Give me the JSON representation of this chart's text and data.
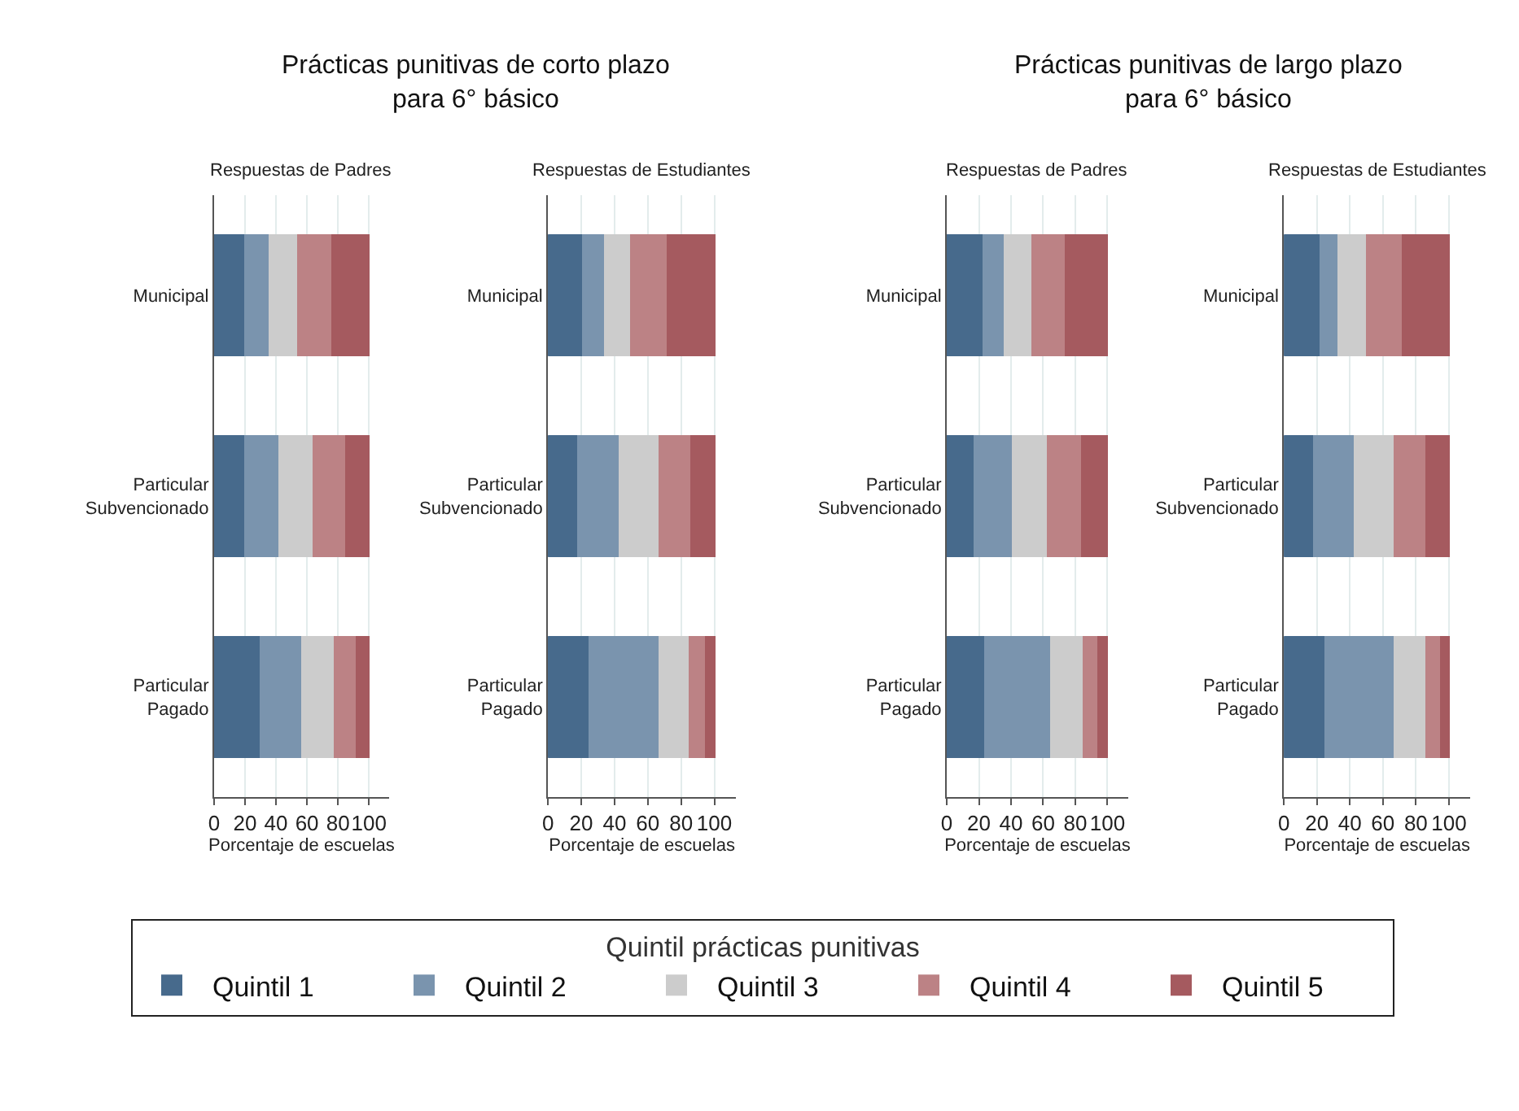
{
  "chart_data": [
    {
      "type": "bar",
      "orientation": "horizontal",
      "stacked": true,
      "title": "Respuestas de Padres",
      "annotations": [
        "Prácticas punitivas de corto plazo\npara 6° básico"
      ],
      "xlabel": "Porcentaje de escuelas",
      "legend_title": "Quintil prácticas punitivas",
      "legend": "bottom",
      "grid": "x",
      "xlim": [
        0,
        113
      ],
      "xticks": [
        0,
        20,
        40,
        60,
        80,
        100
      ],
      "categories": [
        "Municipal",
        "Particular\nSubvencionado",
        "Particular\nPagado"
      ],
      "series": [
        {
          "name": "Quintil 1",
          "color": "#476a8c",
          "values": [
            20,
            20,
            30
          ]
        },
        {
          "name": "Quintil 2",
          "color": "#7a94ae",
          "values": [
            16,
            22,
            27
          ]
        },
        {
          "name": "Quintil 3",
          "color": "#cccccc",
          "values": [
            18,
            22,
            21
          ]
        },
        {
          "name": "Quintil 4",
          "color": "#bc8285",
          "values": [
            22,
            21,
            14
          ]
        },
        {
          "name": "Quintil 5",
          "color": "#a55a5f",
          "values": [
            24,
            15,
            8
          ]
        }
      ]
    },
    {
      "type": "bar",
      "orientation": "horizontal",
      "stacked": true,
      "title": "Respuestas de Estudiantes",
      "xlabel": "Porcentaje de escuelas",
      "grid": "x",
      "xlim": [
        0,
        113
      ],
      "xticks": [
        0,
        20,
        40,
        60,
        80,
        100
      ],
      "categories": [
        "Municipal",
        "Particular\nSubvencionado",
        "Particular\nPagado"
      ],
      "series": [
        {
          "color": "#476a8c",
          "values": [
            21,
            18,
            25
          ]
        },
        {
          "color": "#7a94ae",
          "values": [
            13,
            25,
            42
          ]
        },
        {
          "color": "#cccccc",
          "values": [
            16,
            24,
            18
          ]
        },
        {
          "color": "#bc8285",
          "values": [
            22,
            19,
            10
          ]
        },
        {
          "color": "#a55a5f",
          "values": [
            28,
            14,
            5
          ]
        }
      ]
    },
    {
      "type": "bar",
      "orientation": "horizontal",
      "stacked": true,
      "title": "Respuestas de Padres",
      "annotations": [
        "Prácticas punitivas de largo plazo\npara 6° básico"
      ],
      "xlabel": "Porcentaje de escuelas",
      "grid": "x",
      "xlim": [
        0,
        113
      ],
      "xticks": [
        0,
        20,
        40,
        60,
        80,
        100
      ],
      "categories": [
        "Municipal",
        "Particular\nSubvencionado",
        "Particular\nPagado"
      ],
      "series": [
        {
          "color": "#476a8c",
          "values": [
            23,
            17,
            24
          ]
        },
        {
          "color": "#7a94ae",
          "values": [
            13,
            24,
            41
          ]
        },
        {
          "color": "#cccccc",
          "values": [
            17,
            22,
            20
          ]
        },
        {
          "color": "#bc8285",
          "values": [
            21,
            21,
            9
          ]
        },
        {
          "color": "#a55a5f",
          "values": [
            26,
            16,
            6
          ]
        }
      ]
    },
    {
      "type": "bar",
      "orientation": "horizontal",
      "stacked": true,
      "title": "Respuestas de Estudiantes",
      "xlabel": "Porcentaje de escuelas",
      "grid": "x",
      "xlim": [
        0,
        113
      ],
      "xticks": [
        0,
        20,
        40,
        60,
        80,
        100
      ],
      "categories": [
        "Municipal",
        "Particular\nSubvencionado",
        "Particular\nPagado"
      ],
      "series": [
        {
          "color": "#476a8c",
          "values": [
            22,
            18,
            25
          ]
        },
        {
          "color": "#7a94ae",
          "values": [
            11,
            25,
            42
          ]
        },
        {
          "color": "#cccccc",
          "values": [
            17,
            24,
            19
          ]
        },
        {
          "color": "#bc8285",
          "values": [
            22,
            19,
            9
          ]
        },
        {
          "color": "#a55a5f",
          "values": [
            28,
            14,
            5
          ]
        }
      ]
    }
  ]
}
